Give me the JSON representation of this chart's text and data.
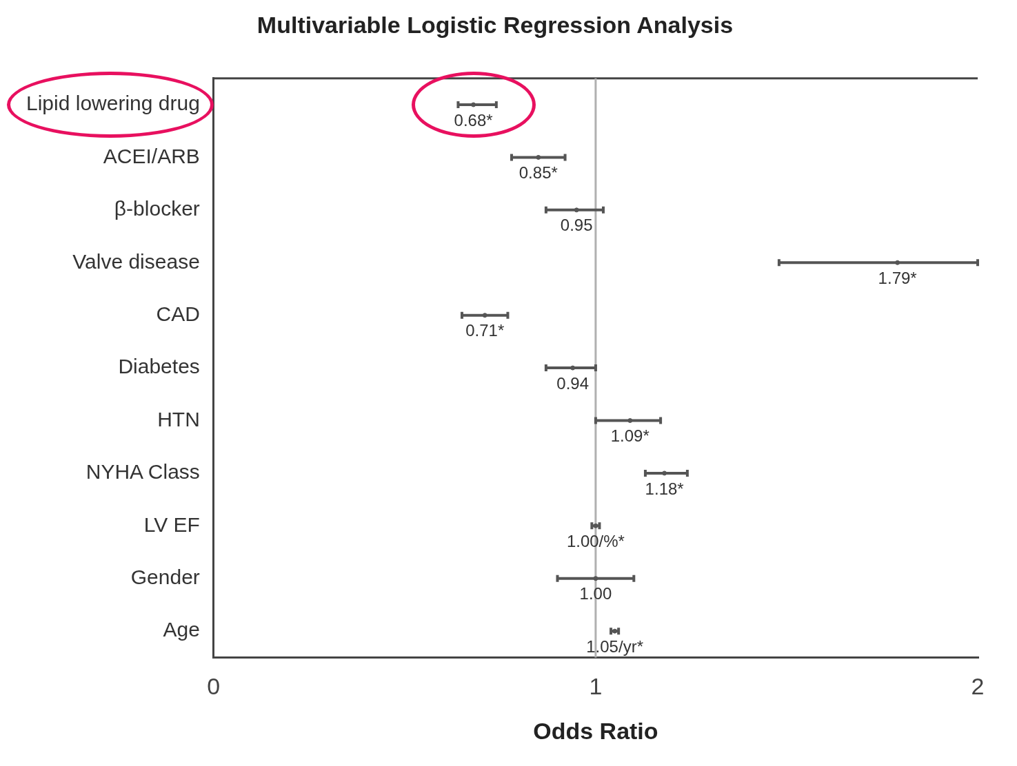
{
  "chart_data": {
    "type": "scatter",
    "orientation": "horizontal",
    "title": "Multivariable Logistic Regression Analysis",
    "xlabel": "Odds Ratio",
    "categories": [
      "Lipid lowering drug",
      "ACEI/ARB",
      "β-blocker",
      "Valve disease",
      "CAD",
      "Diabetes",
      "HTN",
      "NYHA Class",
      "LV EF",
      "Gender",
      "Age"
    ],
    "values": [
      0.68,
      0.85,
      0.95,
      1.79,
      0.71,
      0.94,
      1.09,
      1.18,
      1.0,
      1.0,
      1.05
    ],
    "errors": [
      [
        0.64,
        0.74
      ],
      [
        0.78,
        0.92
      ],
      [
        0.87,
        1.02
      ],
      [
        1.48,
        2.0
      ],
      [
        0.65,
        0.77
      ],
      [
        0.87,
        1.0
      ],
      [
        1.0,
        1.17
      ],
      [
        1.13,
        1.24
      ],
      [
        0.99,
        1.01
      ],
      [
        0.9,
        1.1
      ],
      [
        1.04,
        1.06
      ]
    ],
    "value_labels": [
      "0.68*",
      "0.85*",
      "0.95",
      "1.79*",
      "0.71*",
      "0.94",
      "1.09*",
      "1.18*",
      "1.00/%*",
      "1.00",
      "1.05/yr*"
    ],
    "color": "#555555",
    "xlim": [
      0,
      2
    ],
    "xticks": [
      0,
      1,
      2
    ],
    "marker": "circle",
    "grid": false,
    "legend": false,
    "ref_lines": [
      {
        "axis": "x",
        "value": 1,
        "color": "#b0b0b0"
      }
    ]
  }
}
